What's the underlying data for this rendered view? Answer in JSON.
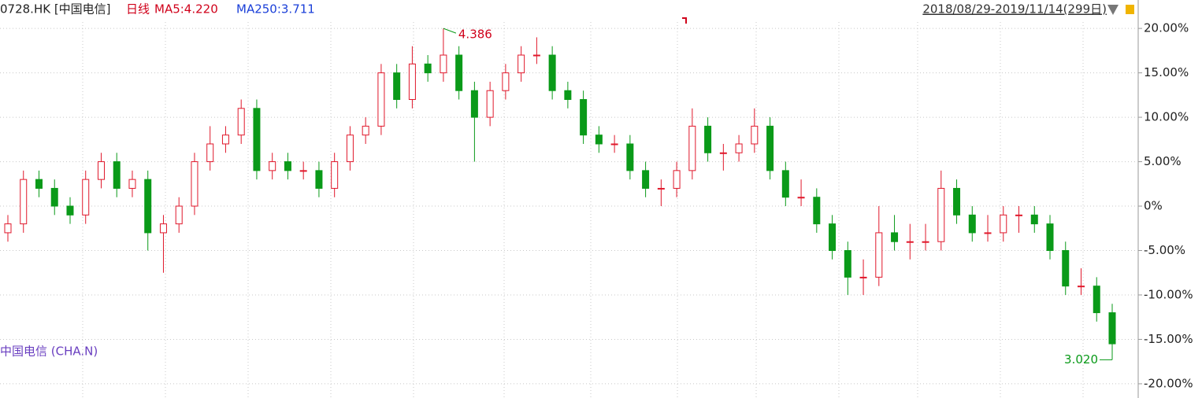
{
  "chart_data": {
    "type": "candlestick",
    "symbol": "0728.HK [中国电信]",
    "period": "日线",
    "ma5": "MA5:4.220",
    "ma250": "MA250:3.711",
    "date_range": "2018/08/29-2019/11/14(299日)",
    "compare_label": "中国电信 (CHA.N)",
    "annotations": [
      "4.386",
      "3.020"
    ],
    "up_color": "#e0182b",
    "down_color": "#0a9a19",
    "ylim": [
      -21.6,
      23.2
    ],
    "yticks": [
      {
        "value": 20,
        "label": "20.00%"
      },
      {
        "value": 15,
        "label": "15.00%"
      },
      {
        "value": 10,
        "label": "10.00%"
      },
      {
        "value": 5,
        "label": "5.00%"
      },
      {
        "value": 0,
        "label": "0%"
      },
      {
        "value": -5,
        "label": "-5.00%"
      },
      {
        "value": -10,
        "label": "-10.00%"
      },
      {
        "value": -15,
        "label": "-15.00%"
      },
      {
        "value": -20,
        "label": "-20.00%"
      }
    ],
    "grid": true,
    "open": [
      -3,
      -2,
      3,
      2,
      0,
      -1,
      3,
      5,
      2,
      3,
      -3,
      -2,
      0,
      5,
      7,
      8,
      11,
      4,
      5,
      4,
      4,
      2,
      5,
      8,
      9,
      15,
      12,
      16,
      15,
      17,
      13,
      10,
      13,
      15,
      17,
      17,
      13,
      12,
      8,
      7,
      7,
      4,
      2,
      2,
      4,
      9,
      6,
      6,
      7,
      9,
      4,
      1,
      1,
      -2,
      -5,
      -8,
      -8,
      -3,
      -4,
      -4,
      -4,
      2,
      -1,
      -3,
      -3,
      -1,
      -1,
      -2,
      -5,
      -9,
      -9,
      -12
    ],
    "high": [
      -1,
      4,
      4,
      3,
      1,
      4,
      6,
      6,
      4,
      4,
      -1,
      1,
      6,
      9,
      9,
      12,
      12,
      6,
      6,
      5,
      5,
      6,
      9,
      10,
      16,
      16,
      18,
      17,
      20,
      18,
      14,
      14,
      16,
      18,
      19,
      18,
      14,
      13,
      9,
      8,
      8,
      5,
      3,
      5,
      11,
      10,
      7,
      8,
      11,
      10,
      5,
      3,
      2,
      -1,
      -4,
      -6,
      0,
      -1,
      -2,
      -2,
      4,
      3,
      0,
      -1,
      0,
      0,
      0,
      -1,
      -4,
      -7,
      -8,
      -11
    ],
    "low": [
      -4,
      -3,
      1,
      -1,
      -2,
      -2,
      2,
      1,
      1,
      -5,
      -7.5,
      -3,
      -1,
      4,
      6,
      7,
      3,
      3,
      3,
      3,
      1,
      1,
      4,
      7,
      8,
      11,
      11,
      14,
      14,
      12,
      5,
      9,
      12,
      14,
      16,
      12,
      11,
      7,
      6,
      6,
      3,
      1,
      0,
      1,
      3,
      5,
      4,
      5,
      6,
      3,
      0,
      0,
      -3,
      -6,
      -10,
      -10,
      -9,
      -5,
      -6,
      -5,
      -5,
      -2,
      -4,
      -4,
      -4,
      -3,
      -3,
      -6,
      -10,
      -10,
      -13,
      -17.3
    ],
    "close": [
      -2,
      3,
      2,
      0,
      -1,
      3,
      5,
      2,
      3,
      -3,
      -2,
      0,
      5,
      7,
      8,
      11,
      4,
      5,
      4,
      4,
      2,
      5,
      8,
      9,
      15,
      12,
      16,
      15,
      17,
      13,
      10,
      13,
      15,
      17,
      17,
      13,
      12,
      8,
      7,
      7,
      4,
      2,
      2,
      4,
      9,
      6,
      6,
      7,
      9,
      4,
      1,
      1,
      -2,
      -5,
      -8,
      -8,
      -3,
      -4,
      -4,
      -4,
      2,
      -1,
      -3,
      -3,
      -1,
      -1,
      -2,
      -5,
      -9,
      -9,
      -12,
      -15.5
    ]
  }
}
